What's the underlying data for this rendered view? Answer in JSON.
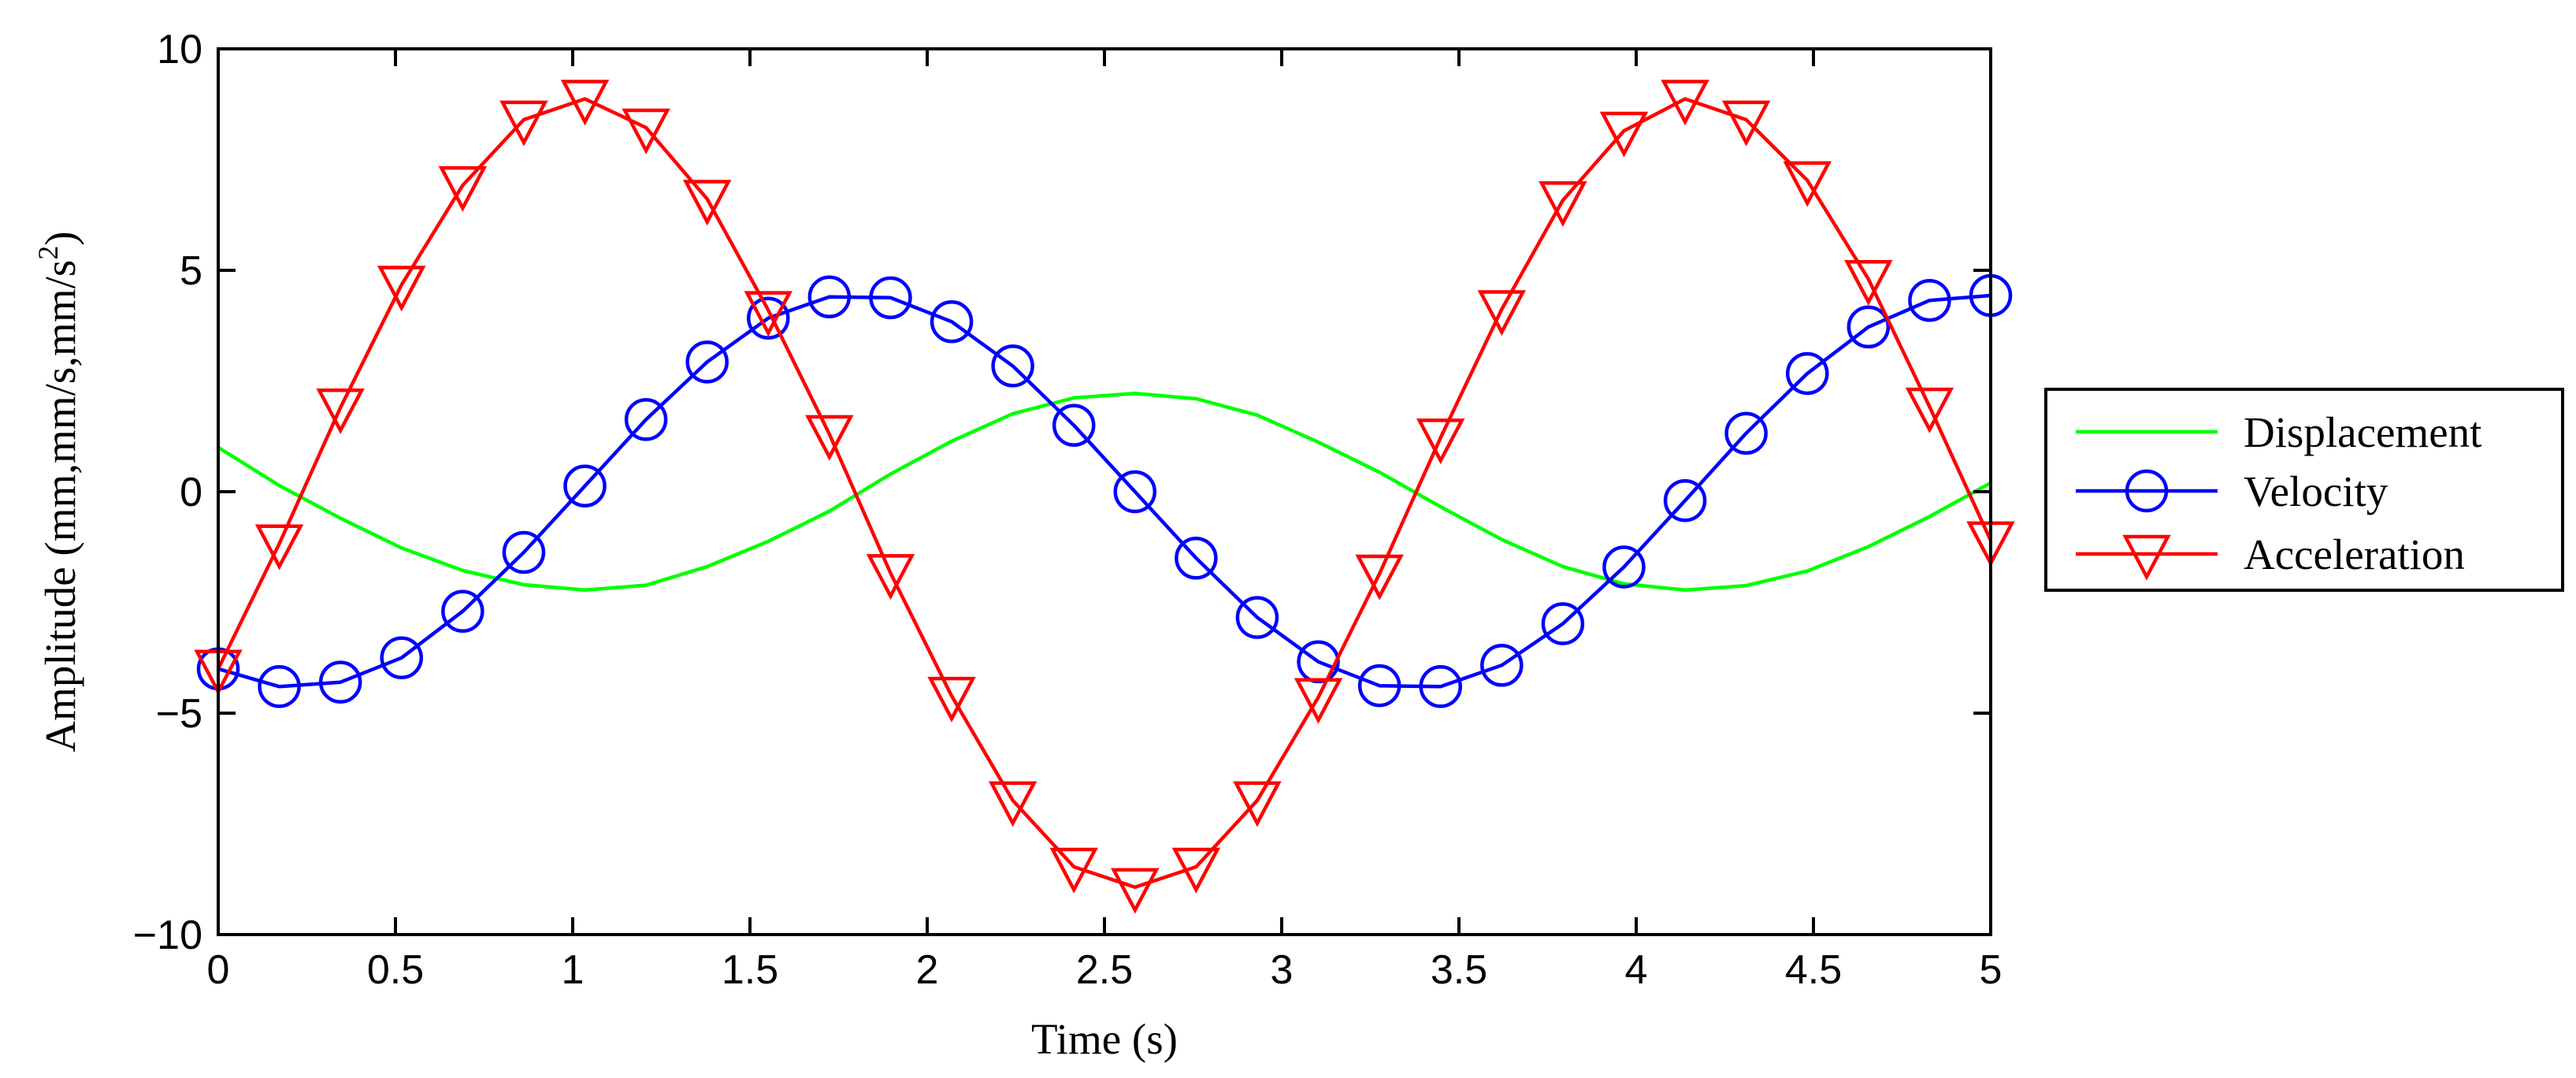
{
  "chart_data": {
    "type": "line",
    "title": "",
    "xlabel": "Time (s)",
    "ylabel": "Amplitude (mm,mm/s,mm/s",
    "ylabel_superscript": "2",
    "ylabel_suffix": ")",
    "xlim": [
      0,
      5
    ],
    "ylim": [
      -10,
      10
    ],
    "xticks": [
      0,
      0.5,
      1,
      1.5,
      2,
      2.5,
      3,
      3.5,
      4,
      4.5,
      5
    ],
    "xtick_labels": [
      "0",
      "0.5",
      "1",
      "1.5",
      "2",
      "2.5",
      "3",
      "3.5",
      "4",
      "4.5",
      "5"
    ],
    "yticks": [
      -10,
      -5,
      0,
      5,
      10
    ],
    "ytick_labels": [
      "−10",
      "−5",
      "0",
      "5",
      "10"
    ],
    "grid": false,
    "legend_position": "outside-right",
    "x": [
      0,
      0.1724,
      0.3448,
      0.5172,
      0.6897,
      0.8621,
      1.0345,
      1.2069,
      1.3793,
      1.5517,
      1.7241,
      1.8966,
      2.069,
      2.2414,
      2.4138,
      2.5862,
      2.7586,
      2.931,
      3.1034,
      3.2759,
      3.4483,
      3.6207,
      3.7931,
      3.9655,
      4.1379,
      4.3103,
      4.4828,
      4.6552,
      4.8276,
      5
    ],
    "series": [
      {
        "name": "Displacement",
        "color": "#00ff00",
        "marker": "none",
        "values": [
          1.0,
          0.14,
          -0.6,
          -1.27,
          -1.78,
          -2.1,
          -2.22,
          -2.11,
          -1.69,
          -1.12,
          -0.44,
          0.4,
          1.14,
          1.76,
          2.12,
          2.22,
          2.1,
          1.73,
          1.12,
          0.44,
          -0.34,
          -1.08,
          -1.69,
          -2.08,
          -2.22,
          -2.12,
          -1.79,
          -1.24,
          -0.56,
          0.2
        ]
      },
      {
        "name": "Velocity",
        "color": "#0000ff",
        "marker": "circle",
        "values": [
          -4.0,
          -4.4,
          -4.3,
          -3.75,
          -2.7,
          -1.37,
          0.13,
          1.63,
          2.93,
          3.92,
          4.4,
          4.38,
          3.84,
          2.84,
          1.5,
          0.0,
          -1.5,
          -2.84,
          -3.84,
          -4.38,
          -4.4,
          -3.92,
          -2.98,
          -1.7,
          -0.2,
          1.32,
          2.67,
          3.72,
          4.32,
          4.43
        ]
      },
      {
        "name": "Acceleration",
        "color": "#ff0000",
        "marker": "triangle-down",
        "values": [
          -4.0,
          -1.17,
          1.9,
          4.67,
          6.92,
          8.4,
          8.87,
          8.22,
          6.61,
          4.1,
          1.3,
          -1.84,
          -4.61,
          -6.97,
          -8.47,
          -8.93,
          -8.47,
          -6.97,
          -4.64,
          -1.85,
          1.22,
          4.12,
          6.58,
          8.15,
          8.87,
          8.4,
          7.03,
          4.8,
          1.92,
          -1.1
        ]
      }
    ]
  }
}
